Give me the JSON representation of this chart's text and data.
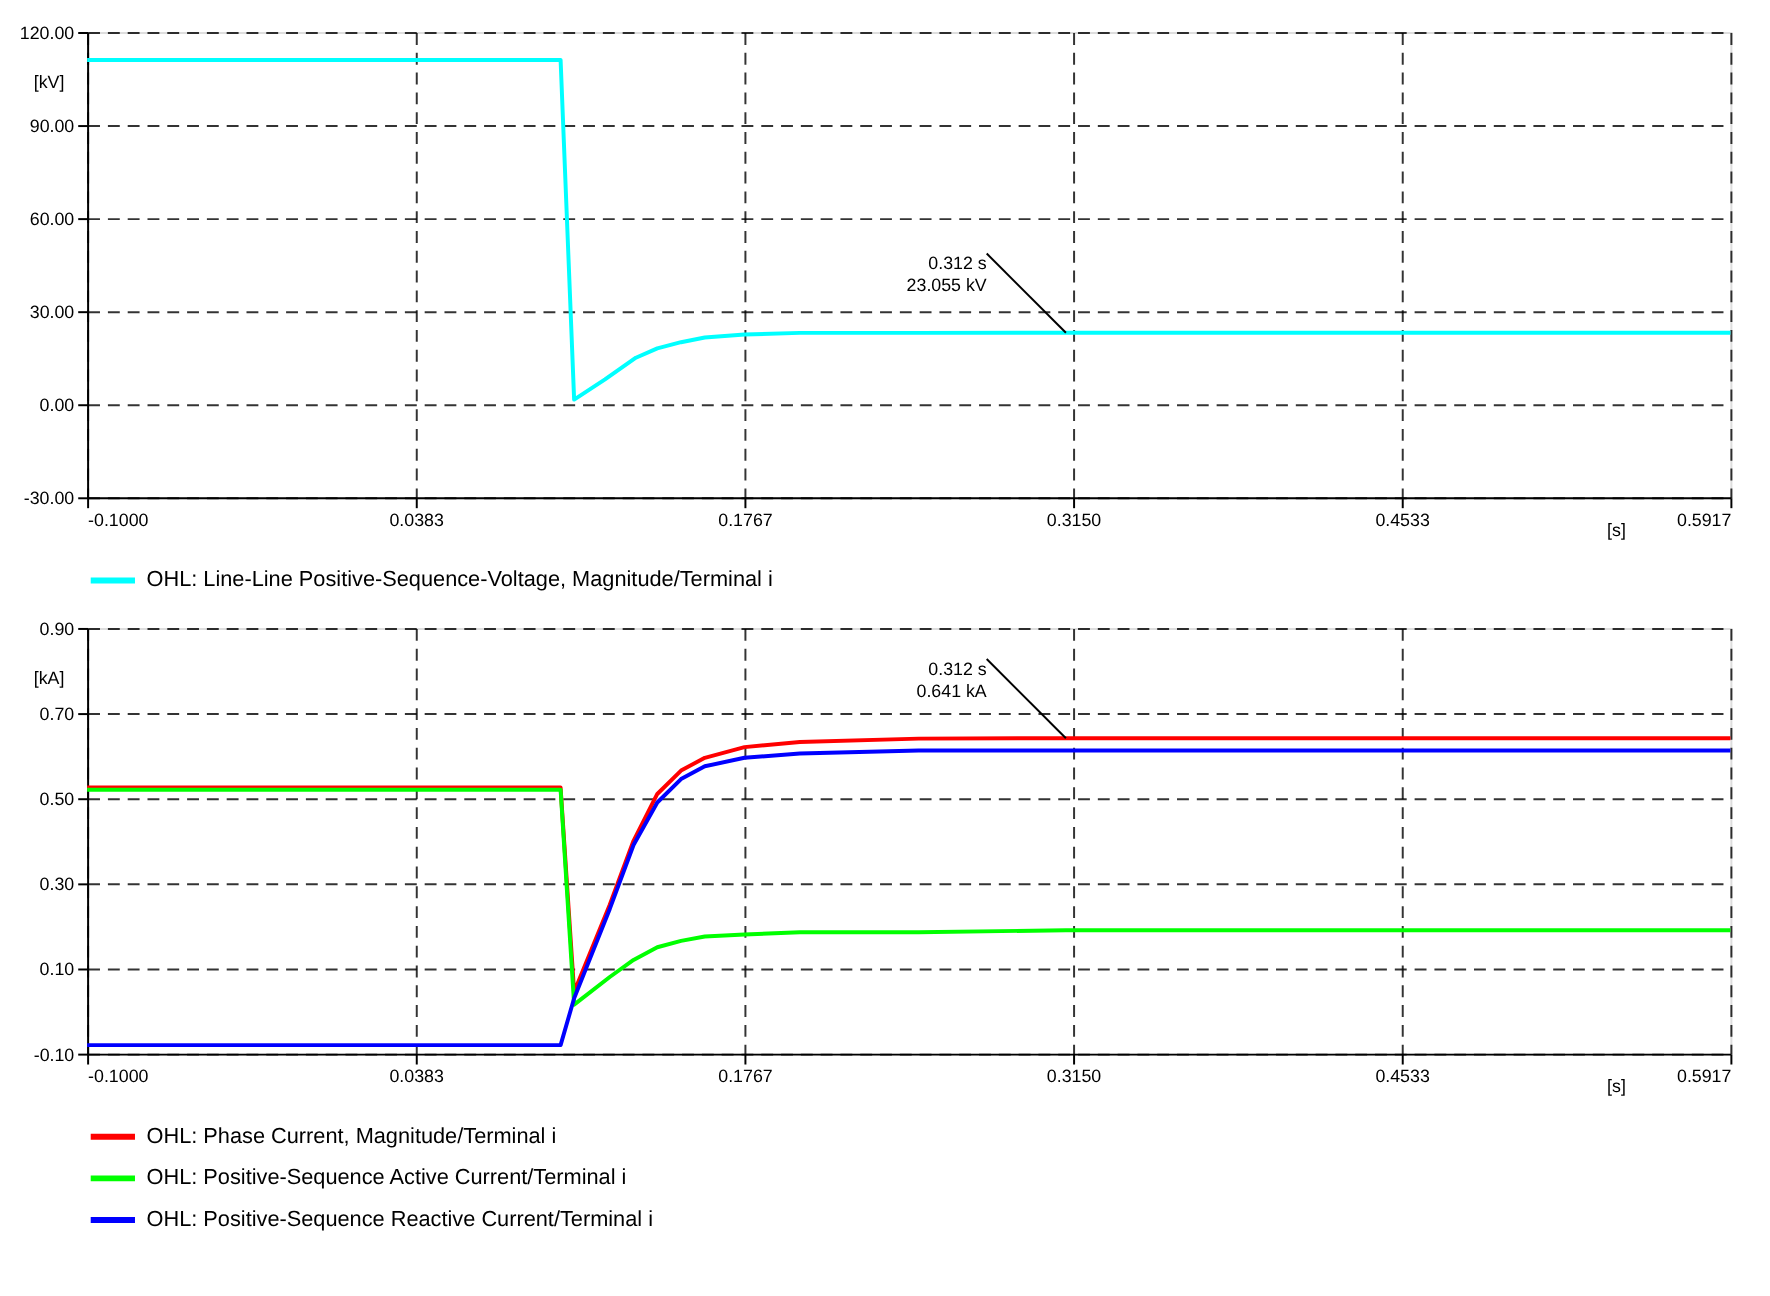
{
  "chart_data": [
    {
      "type": "line",
      "xlabel": "[s]",
      "ylabel": "[kV]",
      "grid": true,
      "legend": "bottom",
      "xlim": [
        -0.1,
        0.5917
      ],
      "xticks": [
        {
          "value": -0.1,
          "label": "-0.1000"
        },
        {
          "value": 0.0383,
          "label": "0.0383"
        },
        {
          "value": 0.1767,
          "label": "0.1767"
        },
        {
          "value": 0.315,
          "label": "0.3150"
        },
        {
          "value": 0.4533,
          "label": "0.4533"
        },
        {
          "value": 0.5917,
          "label": "0.5917"
        }
      ],
      "ylim": [
        -30,
        120
      ],
      "yticks": [
        {
          "value": -30,
          "label": "-30.00"
        },
        {
          "value": 0,
          "label": "0.00"
        },
        {
          "value": 30,
          "label": "30.00"
        },
        {
          "value": 60,
          "label": "60.00"
        },
        {
          "value": 90,
          "label": "90.00"
        },
        {
          "value": 120,
          "label": "120.00"
        }
      ],
      "annotations": [
        {
          "text": "0.312 s\n23.055 kV",
          "x": 0.312,
          "y": 23.055
        }
      ],
      "series": [
        {
          "name": "OHL: Line-Line Positive-Sequence-Voltage, Magnitude/Terminal i",
          "color": "#00ffff",
          "x": [
            -0.1,
            0.0993,
            0.105,
            0.118,
            0.131,
            0.14,
            0.15,
            0.16,
            0.1767,
            0.2,
            0.25,
            0.312,
            0.5917
          ],
          "values": [
            111,
            111,
            1.5,
            8,
            15,
            18,
            20,
            21.5,
            22.5,
            23,
            23,
            23.055,
            23.055
          ]
        }
      ]
    },
    {
      "type": "line",
      "xlabel": "[s]",
      "ylabel": "[kA]",
      "grid": true,
      "legend": "bottom",
      "xlim": [
        -0.1,
        0.5917
      ],
      "xticks": [
        {
          "value": -0.1,
          "label": "-0.1000"
        },
        {
          "value": 0.0383,
          "label": "0.0383"
        },
        {
          "value": 0.1767,
          "label": "0.1767"
        },
        {
          "value": 0.315,
          "label": "0.3150"
        },
        {
          "value": 0.4533,
          "label": "0.4533"
        },
        {
          "value": 0.5917,
          "label": "0.5917"
        }
      ],
      "ylim": [
        -0.1,
        0.9
      ],
      "yticks": [
        {
          "value": -0.1,
          "label": "-0.10"
        },
        {
          "value": 0.1,
          "label": "0.10"
        },
        {
          "value": 0.3,
          "label": "0.30"
        },
        {
          "value": 0.5,
          "label": "0.50"
        },
        {
          "value": 0.7,
          "label": "0.70"
        },
        {
          "value": 0.9,
          "label": "0.90"
        }
      ],
      "annotations": [
        {
          "text": "0.312 s\n0.641 kA",
          "x": 0.312,
          "y": 0.641
        }
      ],
      "series": [
        {
          "name": "OHL: Phase Current, Magnitude/Terminal i",
          "color": "#ff0000",
          "x": [
            -0.1,
            0.0993,
            0.105,
            0.12,
            0.13,
            0.14,
            0.15,
            0.16,
            0.1767,
            0.2,
            0.25,
            0.312,
            0.5917
          ],
          "values": [
            0.525,
            0.525,
            0.045,
            0.25,
            0.4,
            0.51,
            0.565,
            0.595,
            0.62,
            0.632,
            0.64,
            0.641,
            0.641
          ]
        },
        {
          "name": "OHL: Positive-Sequence Active Current/Terminal i",
          "color": "#00ff00",
          "x": [
            -0.1,
            0.0993,
            0.105,
            0.12,
            0.13,
            0.14,
            0.15,
            0.16,
            0.1767,
            0.2,
            0.25,
            0.312,
            0.5917
          ],
          "values": [
            0.52,
            0.52,
            0.015,
            0.08,
            0.12,
            0.15,
            0.165,
            0.175,
            0.18,
            0.185,
            0.185,
            0.19,
            0.19
          ]
        },
        {
          "name": "OHL: Positive-Sequence Reactive Current/Terminal i",
          "color": "#0000ff",
          "x": [
            -0.1,
            0.0993,
            0.105,
            0.12,
            0.13,
            0.14,
            0.15,
            0.16,
            0.1767,
            0.2,
            0.25,
            0.312,
            0.5917
          ],
          "values": [
            -0.08,
            -0.08,
            0.03,
            0.24,
            0.39,
            0.49,
            0.545,
            0.575,
            0.595,
            0.605,
            0.612,
            0.612,
            0.612
          ]
        }
      ]
    }
  ]
}
